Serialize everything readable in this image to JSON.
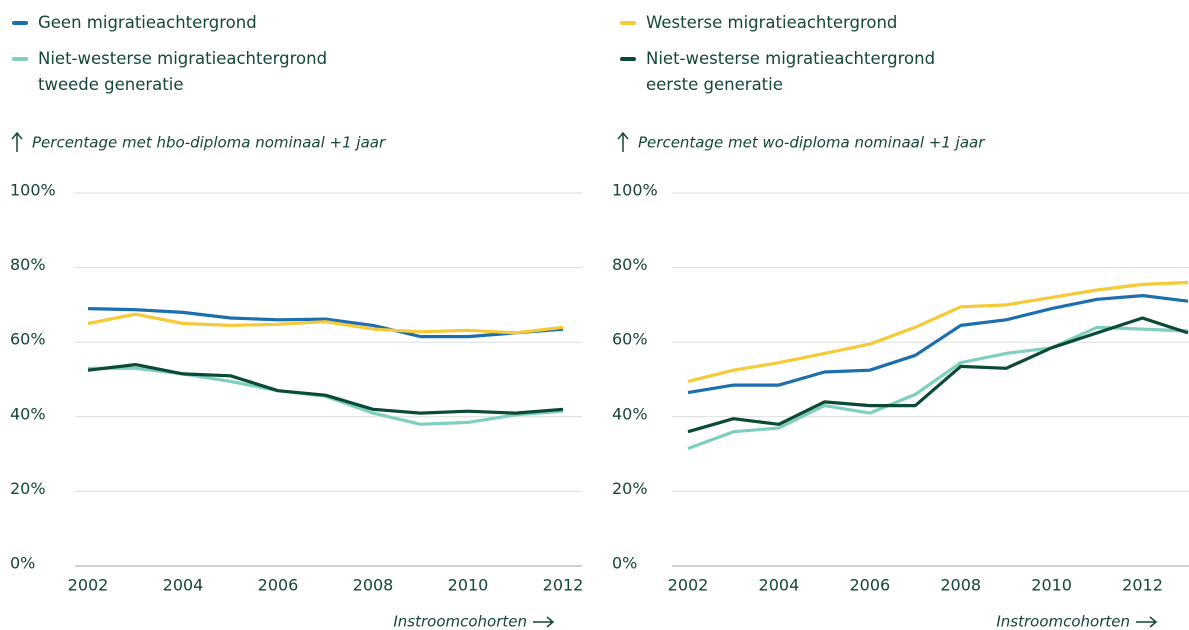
{
  "chart_data": [
    {
      "type": "line",
      "ylabel": "Percentage met hbo-diploma nominaal +1 jaar",
      "xlabel": "Instroomcohorten",
      "x": [
        2002,
        2003,
        2004,
        2005,
        2006,
        2007,
        2008,
        2009,
        2010,
        2011,
        2012
      ],
      "series": [
        {
          "name": "Geen migratieachtergrond",
          "color": "#1b6fae",
          "values": [
            69,
            68.7,
            68,
            66.5,
            66,
            66.2,
            64.5,
            61.5,
            61.5,
            62.5,
            63.5
          ]
        },
        {
          "name": "Westerse migratieachtergrond",
          "color": "#f6c936",
          "values": [
            65,
            67.5,
            65,
            64.5,
            64.8,
            65.5,
            63.5,
            62.8,
            63.2,
            62.5,
            64
          ]
        },
        {
          "name": "Niet-westerse migratieachtergrond tweede generatie",
          "color": "#7fcfbf",
          "values": [
            53,
            53,
            51.5,
            49.5,
            47,
            45.5,
            41,
            38,
            38.5,
            40.5,
            41.5
          ]
        },
        {
          "name": "Niet-westerse migratieachtergrond eerste generatie",
          "color": "#0b4a34",
          "values": [
            52.5,
            54,
            51.5,
            51,
            47,
            45.8,
            42,
            41,
            41.5,
            41,
            42
          ]
        }
      ],
      "xlim": [
        2002,
        2012
      ],
      "xticks": [
        2002,
        2004,
        2006,
        2008,
        2010,
        2012
      ],
      "ylim": [
        0,
        100
      ],
      "yticks": [
        {
          "value": 0,
          "label": "0%"
        },
        {
          "value": 20,
          "label": "20%"
        },
        {
          "value": 40,
          "label": "40%"
        },
        {
          "value": 60,
          "label": "60%"
        },
        {
          "value": 80,
          "label": "80%"
        },
        {
          "value": 100,
          "label": "100%"
        }
      ],
      "grid": true
    },
    {
      "type": "line",
      "ylabel": "Percentage met wo-diploma nominaal +1 jaar",
      "xlabel": "Instroomcohorten",
      "x": [
        2002,
        2003,
        2004,
        2005,
        2006,
        2007,
        2008,
        2009,
        2010,
        2011,
        2012,
        2013
      ],
      "series": [
        {
          "color": "#1b6fae",
          "values": [
            46.5,
            48.5,
            48.5,
            52,
            52.5,
            56.5,
            64.5,
            66,
            69,
            71.5,
            72.5,
            71
          ]
        },
        {
          "color": "#f6c936",
          "values": [
            49.5,
            52.5,
            54.5,
            57,
            59.5,
            64,
            69.5,
            70,
            72,
            74,
            75.5,
            76
          ]
        },
        {
          "color": "#7fcfbf",
          "values": [
            31.5,
            36,
            37,
            43,
            41,
            46,
            54.5,
            57,
            58.5,
            64,
            63.5,
            63
          ]
        },
        {
          "color": "#0b4a34",
          "values": [
            36,
            39.5,
            38,
            44,
            43,
            43,
            53.5,
            53,
            58.5,
            62.5,
            66.5,
            62.5
          ]
        }
      ],
      "xlim": [
        2002,
        2013
      ],
      "xticks": [
        2002,
        2004,
        2006,
        2008,
        2010,
        2012
      ],
      "ylim": [
        0,
        100
      ],
      "yticks": [
        {
          "value": 0,
          "label": "0%"
        },
        {
          "value": 20,
          "label": "20%"
        },
        {
          "value": 40,
          "label": "40%"
        },
        {
          "value": 60,
          "label": "60%"
        },
        {
          "value": 80,
          "label": "80%"
        },
        {
          "value": 100,
          "label": "100%"
        }
      ],
      "grid": true
    }
  ]
}
